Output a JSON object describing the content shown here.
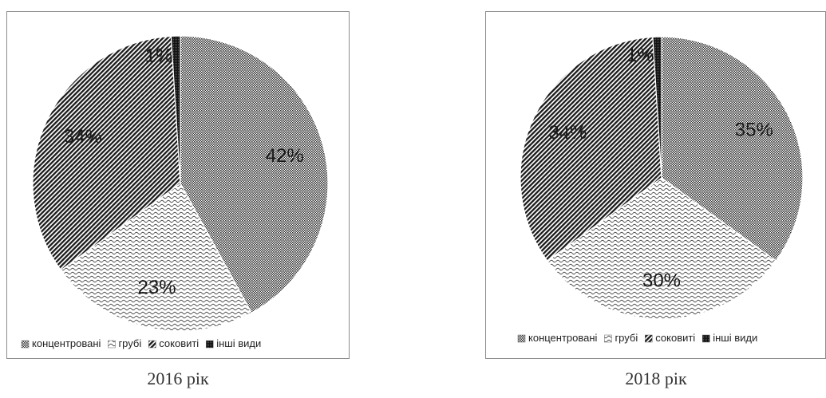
{
  "chart_data": [
    {
      "type": "pie",
      "title": "",
      "caption": "2016 рік",
      "categories": [
        "концентровані",
        "грубі",
        "соковиті",
        "інші види"
      ],
      "values": [
        42,
        23,
        34,
        1
      ],
      "labels": [
        "42%",
        "23%",
        "34%",
        "1%"
      ],
      "legend": "bottom"
    },
    {
      "type": "pie",
      "title": "",
      "caption": "2018 рік",
      "categories": [
        "концентровані",
        "грубі",
        "соковиті",
        "інші види"
      ],
      "values": [
        35,
        30,
        34,
        1
      ],
      "labels": [
        "35%",
        "30%",
        "34%",
        "1%"
      ],
      "legend": "bottom"
    }
  ],
  "patterns": [
    "dots",
    "waves",
    "diag-dense",
    "solid-dark"
  ],
  "colors": {
    "ink": "#1a1a1a",
    "border": "#8c8c8c",
    "bg": "#ffffff"
  }
}
